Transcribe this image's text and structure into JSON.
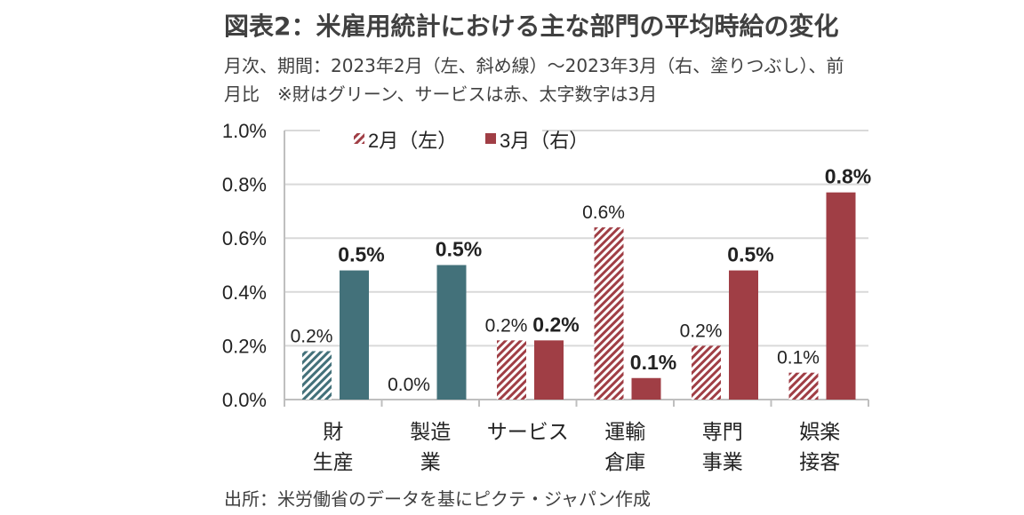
{
  "title": "図表2：米雇用統計における主な部門の平均時給の変化",
  "subtitle_lines": [
    "月次、期間：2023年2月（左、斜め線）～2023年3月（右、塗りつぶし）、前",
    "月比　※財はグリーン、サービスは赤、太字数字は3月"
  ],
  "source": "出所：米労働省のデータを基にピクテ・ジャパン作成",
  "colors": {
    "goods": "#43717a",
    "services": "#a03e45",
    "grid": "#d9d9d9"
  },
  "chart_data": {
    "type": "bar",
    "title": "図表2：米雇用統計における主な部門の平均時給の変化",
    "xlabel": "",
    "ylabel": "",
    "ylim": [
      0,
      1.0
    ],
    "yticks": [
      "0.0%",
      "0.2%",
      "0.4%",
      "0.6%",
      "0.8%",
      "1.0%"
    ],
    "grid": true,
    "legend_position": "top-left",
    "categories": [
      [
        "財",
        "生産"
      ],
      [
        "製造",
        "業"
      ],
      [
        "サービス"
      ],
      [
        "運輸",
        "倉庫"
      ],
      [
        "専門",
        "事業"
      ],
      [
        "娯楽",
        "接客"
      ]
    ],
    "category_group": [
      "goods",
      "goods",
      "services",
      "services",
      "services",
      "services"
    ],
    "series": [
      {
        "name": "2月（左）",
        "style": "hatched",
        "values": [
          0.18,
          0.0,
          0.22,
          0.64,
          0.2,
          0.1
        ],
        "labels": [
          "0.2%",
          "0.0%",
          "0.2%",
          "0.6%",
          "0.2%",
          "0.1%"
        ]
      },
      {
        "name": "3月（右）",
        "style": "solid",
        "values": [
          0.48,
          0.5,
          0.22,
          0.08,
          0.48,
          0.77
        ],
        "labels": [
          "0.5%",
          "0.5%",
          "0.2%",
          "0.1%",
          "0.5%",
          "0.8%"
        ]
      }
    ]
  }
}
